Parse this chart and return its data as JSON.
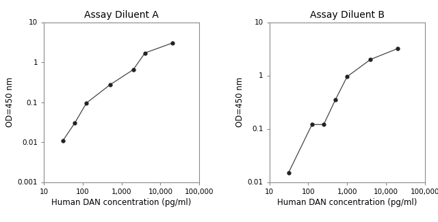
{
  "chart_a": {
    "title": "Assay Diluent A",
    "x": [
      31.25,
      62.5,
      125,
      500,
      2000,
      4000,
      20000
    ],
    "y": [
      0.011,
      0.03,
      0.095,
      0.27,
      0.65,
      1.7,
      3.0
    ],
    "xlim": [
      10,
      100000
    ],
    "ylim": [
      0.001,
      10
    ],
    "xlabel": "Human DAN concentration (pg/ml)",
    "ylabel": "OD=450 nm"
  },
  "chart_b": {
    "title": "Assay Diluent B",
    "x": [
      31.25,
      125,
      250,
      500,
      1000,
      4000,
      20000
    ],
    "y": [
      0.015,
      0.12,
      0.12,
      0.35,
      0.95,
      2.0,
      3.2
    ],
    "xlim": [
      10,
      100000
    ],
    "ylim": [
      0.01,
      10
    ],
    "xlabel": "Human DAN concentration (pg/ml)",
    "ylabel": "OD=450 nm"
  },
  "line_color": "#444444",
  "marker_color": "#222222",
  "marker_style": "o",
  "marker_size": 3.5,
  "line_width": 0.9,
  "background_color": "#ffffff",
  "xticks": [
    10,
    100,
    1000,
    10000,
    100000
  ],
  "xtick_labels": [
    "10",
    "100",
    "1,000",
    "10,000",
    "100,000"
  ],
  "yticks_a": [
    0.001,
    0.01,
    0.1,
    1,
    10
  ],
  "ytick_labels_a": [
    "0.001",
    "0.01",
    "0.1",
    "1",
    "10"
  ],
  "yticks_b": [
    0.01,
    0.1,
    1,
    10
  ],
  "ytick_labels_b": [
    "0.01",
    "0.1",
    "1",
    "10"
  ],
  "title_fontsize": 10,
  "label_fontsize": 8.5,
  "tick_fontsize": 7.5
}
